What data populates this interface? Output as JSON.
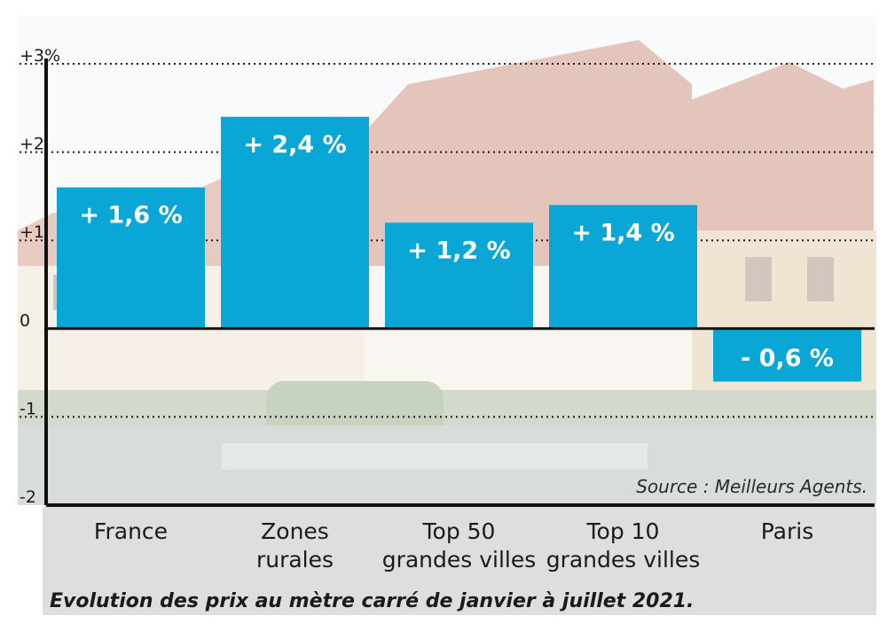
{
  "chart_data": {
    "type": "bar",
    "categories": [
      [
        "France"
      ],
      [
        "Zones",
        "rurales"
      ],
      [
        "Top 50",
        "grandes villes"
      ],
      [
        "Top 10",
        "grandes villes"
      ],
      [
        "Paris"
      ]
    ],
    "values": [
      1.6,
      2.4,
      1.2,
      1.4,
      -0.6
    ],
    "value_labels": [
      "+ 1,6 %",
      "+ 2,4 %",
      "+ 1,2 %",
      "+ 1,4 %",
      "- 0,6 %"
    ],
    "ylim": [
      -2,
      3
    ],
    "yticks": [
      3,
      2,
      1,
      0,
      -1,
      -2
    ],
    "ytick_labels": [
      "+3%",
      "+2",
      "+1",
      "0",
      "-1",
      "-2"
    ],
    "grid": "dotted",
    "source": "Source : Meilleurs Agents.",
    "caption": "Evolution des prix au mètre carré de janvier à juillet 2021.",
    "colors": {
      "bar": "#0aa6d6",
      "text": "#1a1a1a"
    }
  }
}
